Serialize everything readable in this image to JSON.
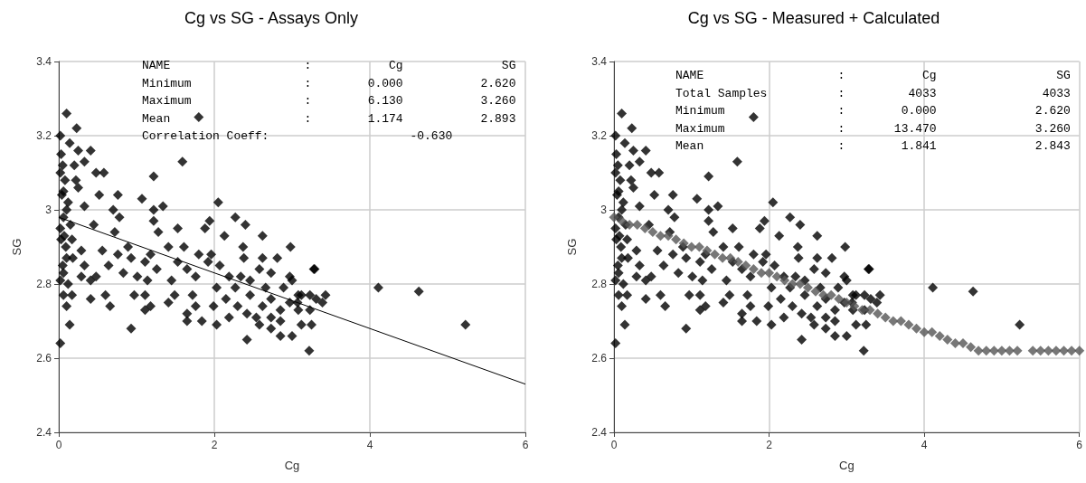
{
  "chart_data": [
    {
      "type": "scatter",
      "title": "Cg vs SG - Assays Only",
      "xlabel": "Cg",
      "ylabel": "SG",
      "xlim": [
        0,
        6
      ],
      "xticks": [
        0,
        2,
        4,
        6
      ],
      "ylim": [
        2.4,
        3.4
      ],
      "yticks": [
        2.4,
        2.6,
        2.8,
        3,
        3.2,
        3.4
      ],
      "grid": true,
      "marker": "diamond",
      "annotations": [
        "NAME                   :           Cg              SG",
        "Minimum                :        0.000           2.620",
        "Maximum                :        6.130           3.260",
        "Mean                   :        1.174           2.893",
        "Correlation Coeff:                    -0.630"
      ],
      "series": [
        {
          "color": "#000000",
          "x": [
            0.1,
            1.8,
            0.23,
            0.02,
            0.14,
            0.25,
            0.41,
            0.33,
            1.59,
            0.48,
            0.58,
            1.22,
            0.02,
            0.06,
            0.25,
            0.76,
            0.52,
            1.07,
            2.05,
            1.34,
            1.22,
            0.7,
            0.33,
            0.1,
            2.27,
            0.78,
            1.22,
            1.94,
            2.4,
            0.45,
            1.53,
            0.02,
            1.88,
            1.28,
            0.72,
            2.13,
            2.62,
            0.17,
            1.61,
            2.37,
            2.98,
            1.41,
            0.89,
            0.56,
            0.29,
            1.18,
            1.96,
            0.76,
            1.8,
            2.81,
            2.38,
            2.62,
            0.1,
            0.93,
            1.53,
            1.92,
            3.28,
            1.11,
            0.64,
            0.33,
            2.07,
            1.65,
            2.19,
            2.34,
            2.58,
            2.73,
            2.97,
            1.26,
            0.83,
            0.06,
            0.48,
            1.76,
            0.29,
            1.01,
            1.45,
            0.41,
            1.14,
            2.27,
            2.46,
            2.66,
            2.89,
            2.03,
            0.02,
            0.17,
            0.6,
            0.97,
            1.11,
            1.49,
            1.72,
            2.46,
            2.73,
            3.08,
            3.43,
            0.41,
            0.06,
            1.41,
            2.15,
            2.3,
            2.62,
            2.97,
            3.39,
            0.1,
            0.66,
            1.18,
            1.76,
            1.11,
            1.99,
            2.42,
            2.85,
            3.08,
            1.65,
            2.19,
            2.54,
            2.73,
            1.65,
            1.84,
            2.03,
            2.58,
            2.85,
            0.14,
            3.12,
            0.93,
            2.73,
            2.85,
            3.0,
            2.42,
            3.22,
            0.02,
            3.29,
            4.11,
            4.63,
            5.23,
            3.25,
            3.23,
            3.07,
            3.23,
            3.31,
            3.12,
            3.0,
            0.03,
            0.05,
            0.08,
            0.04,
            0.12,
            0.06,
            0.15,
            0.03,
            0.09,
            0.18,
            0.05,
            0.12,
            0.2,
            0.22,
            0.07
          ],
          "values": [
            3.26,
            3.25,
            3.22,
            3.2,
            3.18,
            3.16,
            3.16,
            3.13,
            3.13,
            3.1,
            3.1,
            3.09,
            3.1,
            3.05,
            3.06,
            3.04,
            3.04,
            3.03,
            3.02,
            3.01,
            3.0,
            3.0,
            3.01,
            3.0,
            2.98,
            2.98,
            2.97,
            2.97,
            2.96,
            2.96,
            2.95,
            2.95,
            2.95,
            2.94,
            2.94,
            2.93,
            2.93,
            2.92,
            2.9,
            2.9,
            2.9,
            2.9,
            2.9,
            2.89,
            2.89,
            2.88,
            2.88,
            2.88,
            2.88,
            2.87,
            2.87,
            2.87,
            2.87,
            2.87,
            2.86,
            2.86,
            2.84,
            2.86,
            2.85,
            2.85,
            2.85,
            2.84,
            2.82,
            2.82,
            2.84,
            2.83,
            2.82,
            2.84,
            2.83,
            2.83,
            2.82,
            2.82,
            2.82,
            2.82,
            2.81,
            2.81,
            2.81,
            2.79,
            2.81,
            2.79,
            2.79,
            2.79,
            2.81,
            2.77,
            2.77,
            2.77,
            2.77,
            2.77,
            2.77,
            2.77,
            2.76,
            2.77,
            2.77,
            2.76,
            2.77,
            2.75,
            2.76,
            2.74,
            2.74,
            2.75,
            2.75,
            2.74,
            2.74,
            2.74,
            2.74,
            2.73,
            2.74,
            2.72,
            2.73,
            2.73,
            2.72,
            2.71,
            2.71,
            2.71,
            2.7,
            2.7,
            2.69,
            2.69,
            2.7,
            2.69,
            2.69,
            2.68,
            2.68,
            2.66,
            2.66,
            2.65,
            2.62,
            2.64,
            2.84,
            2.79,
            2.78,
            2.69,
            2.69,
            2.73,
            2.75,
            2.77,
            2.76,
            2.77,
            2.81,
            3.15,
            3.12,
            3.08,
            3.04,
            3.02,
            2.98,
            2.96,
            2.92,
            2.9,
            2.87,
            2.85,
            2.8,
            3.12,
            3.08,
            2.93
          ]
        },
        {
          "type": "line",
          "color": "#000000",
          "line_style": "solid",
          "marker": "none",
          "x": [
            0,
            6
          ],
          "values": [
            2.98,
            2.53
          ]
        }
      ]
    },
    {
      "type": "scatter",
      "title": "Cg vs SG - Measured + Calculated",
      "xlabel": "Cg",
      "ylabel": "SG",
      "xlim": [
        0,
        6
      ],
      "xticks": [
        0,
        2,
        4,
        6
      ],
      "ylim": [
        2.4,
        3.4
      ],
      "yticks": [
        2.4,
        2.6,
        2.8,
        3,
        3.2,
        3.4
      ],
      "grid": true,
      "marker": "diamond",
      "annotations": [
        "NAME                   :           Cg                 SG",
        "Total Samples          :         4033               4033",
        "Minimum                :        0.000              2.620",
        "Maximum                :       13.470              3.260",
        "Mean                   :        1.841              2.843"
      ],
      "series": [
        {
          "color": "#000000",
          "x": [
            0.1,
            1.8,
            0.23,
            0.02,
            0.14,
            0.25,
            0.41,
            0.33,
            1.59,
            0.48,
            0.58,
            1.22,
            0.02,
            0.06,
            0.25,
            0.76,
            0.52,
            1.07,
            2.05,
            1.34,
            1.22,
            0.7,
            0.33,
            0.1,
            2.27,
            0.78,
            1.22,
            1.94,
            2.4,
            0.45,
            1.53,
            0.02,
            1.88,
            1.28,
            0.72,
            2.13,
            2.62,
            0.17,
            1.61,
            2.37,
            2.98,
            1.41,
            0.89,
            0.56,
            0.29,
            1.18,
            1.96,
            0.76,
            1.8,
            2.81,
            2.38,
            2.62,
            0.1,
            0.93,
            1.53,
            1.92,
            3.28,
            1.11,
            0.64,
            0.33,
            2.07,
            1.65,
            2.19,
            2.34,
            2.58,
            2.73,
            2.97,
            1.26,
            0.83,
            0.06,
            0.48,
            1.76,
            0.29,
            1.01,
            1.45,
            0.41,
            1.14,
            2.27,
            2.46,
            2.66,
            2.89,
            2.03,
            0.02,
            0.17,
            0.6,
            0.97,
            1.11,
            1.49,
            1.72,
            2.46,
            2.73,
            3.08,
            3.43,
            0.41,
            0.06,
            1.41,
            2.15,
            2.3,
            2.62,
            2.97,
            3.39,
            0.1,
            0.66,
            1.18,
            1.76,
            1.11,
            1.99,
            2.42,
            2.85,
            3.08,
            1.65,
            2.19,
            2.54,
            2.73,
            1.65,
            1.84,
            2.03,
            2.58,
            2.85,
            0.14,
            3.12,
            0.93,
            2.73,
            2.85,
            3.0,
            2.42,
            3.22,
            0.02,
            3.29,
            4.11,
            4.63,
            5.23,
            3.25,
            3.23,
            3.07,
            3.23,
            3.31,
            3.12,
            3.0,
            0.03,
            0.05,
            0.08,
            0.04,
            0.12,
            0.06,
            0.15,
            0.03,
            0.09,
            0.18,
            0.05,
            0.12,
            0.2,
            0.22,
            0.07
          ],
          "values": [
            3.26,
            3.25,
            3.22,
            3.2,
            3.18,
            3.16,
            3.16,
            3.13,
            3.13,
            3.1,
            3.1,
            3.09,
            3.1,
            3.05,
            3.06,
            3.04,
            3.04,
            3.03,
            3.02,
            3.01,
            3.0,
            3.0,
            3.01,
            3.0,
            2.98,
            2.98,
            2.97,
            2.97,
            2.96,
            2.96,
            2.95,
            2.95,
            2.95,
            2.94,
            2.94,
            2.93,
            2.93,
            2.92,
            2.9,
            2.9,
            2.9,
            2.9,
            2.9,
            2.89,
            2.89,
            2.88,
            2.88,
            2.88,
            2.88,
            2.87,
            2.87,
            2.87,
            2.87,
            2.87,
            2.86,
            2.86,
            2.84,
            2.86,
            2.85,
            2.85,
            2.85,
            2.84,
            2.82,
            2.82,
            2.84,
            2.83,
            2.82,
            2.84,
            2.83,
            2.83,
            2.82,
            2.82,
            2.82,
            2.82,
            2.81,
            2.81,
            2.81,
            2.79,
            2.81,
            2.79,
            2.79,
            2.79,
            2.81,
            2.77,
            2.77,
            2.77,
            2.77,
            2.77,
            2.77,
            2.77,
            2.76,
            2.77,
            2.77,
            2.76,
            2.77,
            2.75,
            2.76,
            2.74,
            2.74,
            2.75,
            2.75,
            2.74,
            2.74,
            2.74,
            2.74,
            2.73,
            2.74,
            2.72,
            2.73,
            2.73,
            2.72,
            2.71,
            2.71,
            2.71,
            2.7,
            2.7,
            2.69,
            2.69,
            2.7,
            2.69,
            2.69,
            2.68,
            2.68,
            2.66,
            2.66,
            2.65,
            2.62,
            2.64,
            2.84,
            2.79,
            2.78,
            2.69,
            2.69,
            2.73,
            2.75,
            2.77,
            2.76,
            2.77,
            2.81,
            3.15,
            3.12,
            3.08,
            3.04,
            3.02,
            2.98,
            2.96,
            2.92,
            2.9,
            2.87,
            2.85,
            2.8,
            3.12,
            3.08,
            2.93
          ]
        },
        {
          "color": "#555555",
          "x": [
            0,
            0.1,
            0.2,
            0.3,
            0.4,
            0.5,
            0.6,
            0.7,
            0.8,
            0.9,
            1.0,
            1.1,
            1.2,
            1.3,
            1.4,
            1.5,
            1.6,
            1.7,
            1.8,
            1.9,
            2.0,
            2.1,
            2.2,
            2.3,
            2.4,
            2.5,
            2.6,
            2.7,
            2.8,
            2.9,
            3.0,
            3.1,
            3.2,
            3.3,
            3.4,
            3.5,
            3.6,
            3.7,
            3.8,
            3.9,
            4.0,
            4.1,
            4.2,
            4.3,
            4.4,
            4.5,
            4.6,
            4.7,
            4.8,
            4.9,
            5.0,
            5.1,
            5.2,
            5.4,
            5.5,
            5.6,
            5.7,
            5.8,
            5.9,
            6.0
          ],
          "values": [
            2.98,
            2.97,
            2.96,
            2.96,
            2.95,
            2.94,
            2.93,
            2.93,
            2.92,
            2.91,
            2.9,
            2.9,
            2.89,
            2.88,
            2.87,
            2.87,
            2.86,
            2.85,
            2.84,
            2.83,
            2.83,
            2.82,
            2.81,
            2.8,
            2.8,
            2.79,
            2.78,
            2.77,
            2.77,
            2.76,
            2.75,
            2.74,
            2.73,
            2.73,
            2.72,
            2.71,
            2.7,
            2.7,
            2.69,
            2.68,
            2.67,
            2.67,
            2.66,
            2.65,
            2.64,
            2.64,
            2.63,
            2.62,
            2.62,
            2.62,
            2.62,
            2.62,
            2.62,
            2.62,
            2.62,
            2.62,
            2.62,
            2.62,
            2.62,
            2.62
          ]
        }
      ]
    }
  ]
}
